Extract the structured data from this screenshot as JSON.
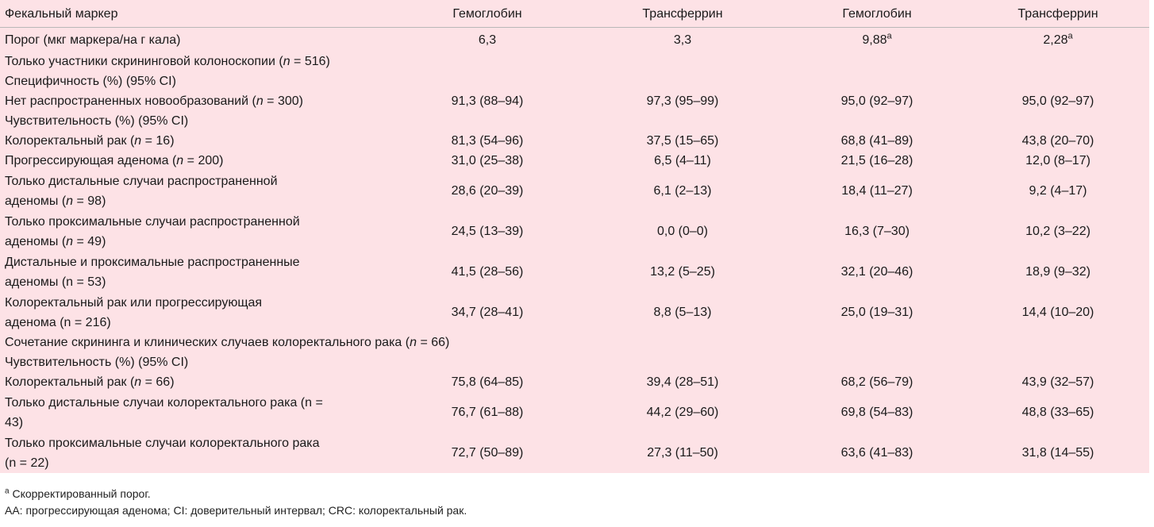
{
  "header": {
    "col0": "Фекальный маркер",
    "col1": "Гемоглобин",
    "col2": "Трансферрин",
    "col3": "Гемоглобин",
    "col4": "Трансферрин"
  },
  "threshold": {
    "label": "Порог (мкг маркера/на г кала)",
    "v1": "6,3",
    "v2": "3,3",
    "v3": "9,88",
    "v3_sup": "a",
    "v4": "2,28",
    "v4_sup": "a"
  },
  "rows": [
    {
      "pre": "Только участники скрининговой колоноскопии (",
      "n": "n",
      "post": " = 516)"
    },
    {
      "text": "Специфичность (%) (95% CI)"
    },
    {
      "pre": "Нет распространенных новообразований (",
      "n": "n",
      "post": " = 300)",
      "v1": "91,3 (88–94)",
      "v2": "97,3 (95–99)",
      "v3": "95,0 (92–97)",
      "v4": "95,0 (92–97)"
    },
    {
      "text": "Чувствительность (%) (95% CI)"
    },
    {
      "pre": "Колоректальный рак (",
      "n": "n",
      "post": " = 16)",
      "v1": "81,3 (54–96)",
      "v2": "37,5 (15–65)",
      "v3": "68,8 (41–89)",
      "v4": "43,8 (20–70)"
    },
    {
      "pre": "Прогрессирующая аденома (",
      "n": "n",
      "post": " = 200)",
      "v1": "31,0 (25–38)",
      "v2": "6,5 (4–11)",
      "v3": "21,5 (16–28)",
      "v4": "12,0 (8–17)"
    },
    {
      "line1": "Только дистальные случаи распространенной",
      "pre": "аденомы (",
      "n": "n",
      "post": " = 98)",
      "v1": "28,6 (20–39)",
      "v2": "6,1 (2–13)",
      "v3": "18,4 (11–27)",
      "v4": "9,2 (4–17)"
    },
    {
      "line1": "Только проксимальные случаи распространенной",
      "pre": "аденомы (",
      "n": "n",
      "post": " = 49)",
      "v1": "24,5 (13–39)",
      "v2": "0,0 (0–0)",
      "v3": "16,3 (7–30)",
      "v4": "10,2 (3–22)"
    },
    {
      "line1": "Дистальные и проксимальные распространенные",
      "line2": "аденомы (n = 53)",
      "v1": "41,5 (28–56)",
      "v2": "13,2 (5–25)",
      "v3": "32,1 (20–46)",
      "v4": "18,9 (9–32)"
    },
    {
      "line1": "Колоректальный рак или прогрессирующая",
      "line2": "аденома (n = 216)",
      "v1": "34,7 (28–41)",
      "v2": "8,8 (5–13)",
      "v3": "25,0 (19–31)",
      "v4": "14,4 (10–20)"
    },
    {
      "pre": "Сочетание скрининга и клинических случаев колоректального рака (",
      "n": "n",
      "post": " = 66)"
    },
    {
      "text": "Чувствительность (%) (95% CI)"
    },
    {
      "pre": "Колоректальный рак (",
      "n": "n",
      "post": " = 66)",
      "v1": "75,8 (64–85)",
      "v2": "39,4 (28–51)",
      "v3": "68,2 (56–79)",
      "v4": "43,9 (32–57)"
    },
    {
      "line1": "Только дистальные случаи колоректального рака (n =",
      "line2": "43)",
      "v1": "76,7 (61–88)",
      "v2": "44,2 (29–60)",
      "v3": "69,8 (54–83)",
      "v4": "48,8 (33–65)"
    },
    {
      "line1": "Только проксимальные случаи колоректального рака",
      "line2": "(n = 22)",
      "v1": "72,7 (50–89)",
      "v2": "27,3 (11–50)",
      "v3": "63,6 (41–83)",
      "v4": "31,8 (14–55)"
    }
  ],
  "footnotes": {
    "a_sup": "a",
    "a_text": " Скорректированный порог.",
    "abbrev": "AA: прогрессирующая аденома; CI: доверительный интервал; CRC: колоректальный рак."
  }
}
